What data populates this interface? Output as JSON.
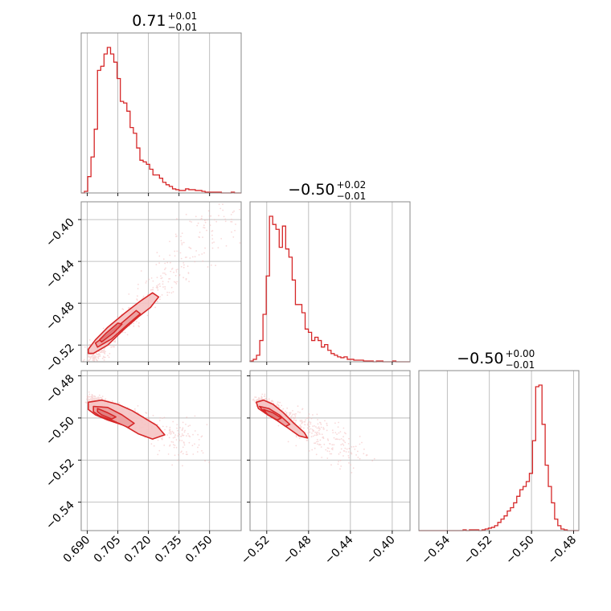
{
  "chart_data": {
    "type": "corner",
    "color": "#d62728",
    "grid": true,
    "parameters": [
      {
        "title": {
          "value": "0.71",
          "upper": "+0.01",
          "lower": "−0.01"
        },
        "range": [
          0.687,
          0.7655
        ],
        "ticks": [
          0.69,
          0.705,
          0.72,
          0.735,
          0.75
        ],
        "tick_labels": [
          "0.690",
          "0.705",
          "0.720",
          "0.735",
          "0.750"
        ]
      },
      {
        "title": {
          "value": "−0.50",
          "upper": "+0.02",
          "lower": "−0.01"
        },
        "range": [
          -0.536,
          -0.383
        ],
        "ticks": [
          -0.52,
          -0.48,
          -0.44,
          -0.4
        ],
        "tick_labels": [
          "−0.52",
          "−0.48",
          "−0.44",
          "−0.40"
        ]
      },
      {
        "title": {
          "value": "−0.50",
          "upper": "+0.00",
          "lower": "−0.01"
        },
        "range": [
          -0.5535,
          -0.4775
        ],
        "ticks": [
          -0.54,
          -0.52,
          -0.5,
          -0.48
        ],
        "tick_labels": [
          "−0.54",
          "−0.52",
          "−0.50",
          "−0.48"
        ]
      }
    ],
    "histograms": [
      {
        "param": 0,
        "bins": [
          0.687,
          0.6886,
          0.6902,
          0.6918,
          0.6934,
          0.695,
          0.6966,
          0.6982,
          0.6998,
          0.7014,
          0.703,
          0.7046,
          0.7062,
          0.7078,
          0.7094,
          0.711,
          0.7126,
          0.7142,
          0.7158,
          0.7174,
          0.719,
          0.7206,
          0.7222,
          0.7238,
          0.7254,
          0.727,
          0.7286,
          0.7302,
          0.7318,
          0.7334,
          0.735,
          0.7366,
          0.7382,
          0.7398,
          0.7414,
          0.743,
          0.7446,
          0.7462,
          0.7478,
          0.7494,
          0.751,
          0.7526,
          0.7542,
          0.7558,
          0.7574,
          0.759,
          0.7606,
          0.7622,
          0.7638,
          0.7655
        ],
        "counts": [
          0,
          2,
          20,
          44,
          78,
          150,
          155,
          170,
          178,
          170,
          160,
          140,
          112,
          110,
          100,
          80,
          73,
          55,
          40,
          38,
          35,
          29,
          22,
          22,
          18,
          13,
          10,
          8,
          5,
          4,
          3,
          3,
          5,
          4,
          4,
          3,
          3,
          2,
          1,
          1,
          1,
          1,
          1,
          0,
          0,
          0,
          1,
          0,
          0
        ]
      },
      {
        "param": 1,
        "bins": [
          -0.536,
          -0.5329,
          -0.5298,
          -0.5267,
          -0.5236,
          -0.5205,
          -0.5174,
          -0.5143,
          -0.5112,
          -0.5081,
          -0.505,
          -0.5019,
          -0.4988,
          -0.4957,
          -0.4926,
          -0.4895,
          -0.4864,
          -0.4833,
          -0.4802,
          -0.4771,
          -0.474,
          -0.4709,
          -0.4678,
          -0.4647,
          -0.4616,
          -0.4585,
          -0.4554,
          -0.4523,
          -0.4492,
          -0.4461,
          -0.443,
          -0.4399,
          -0.4368,
          -0.4337,
          -0.4306,
          -0.4275,
          -0.4244,
          -0.4213,
          -0.4182,
          -0.4151,
          -0.412,
          -0.4089,
          -0.4058,
          -0.4027,
          -0.3996,
          -0.3965,
          -0.3934,
          -0.3903,
          -0.3872,
          -0.383
        ],
        "counts": [
          1,
          3,
          8,
          26,
          58,
          105,
          178,
          168,
          162,
          140,
          166,
          138,
          128,
          100,
          70,
          70,
          60,
          40,
          36,
          26,
          30,
          26,
          18,
          21,
          14,
          10,
          8,
          6,
          5,
          6,
          3,
          3,
          2,
          2,
          2,
          1,
          1,
          1,
          0,
          1,
          1,
          0,
          0,
          0,
          1,
          0,
          0,
          0,
          0
        ]
      },
      {
        "param": 2,
        "bins": [
          -0.5535,
          -0.552,
          -0.5505,
          -0.549,
          -0.5475,
          -0.546,
          -0.5445,
          -0.543,
          -0.5415,
          -0.54,
          -0.5385,
          -0.537,
          -0.5355,
          -0.534,
          -0.5325,
          -0.531,
          -0.5295,
          -0.528,
          -0.5265,
          -0.525,
          -0.5235,
          -0.522,
          -0.5205,
          -0.519,
          -0.5175,
          -0.516,
          -0.5145,
          -0.513,
          -0.5115,
          -0.51,
          -0.5085,
          -0.507,
          -0.5055,
          -0.504,
          -0.5025,
          -0.501,
          -0.4995,
          -0.498,
          -0.4965,
          -0.495,
          -0.4935,
          -0.492,
          -0.4905,
          -0.489,
          -0.4875,
          -0.486,
          -0.4845,
          -0.483,
          -0.4815,
          -0.4775
        ],
        "counts": [
          0,
          0,
          0,
          0,
          0,
          0,
          0,
          0,
          0,
          0,
          0,
          0,
          0,
          0,
          1,
          0,
          1,
          1,
          1,
          0,
          1,
          2,
          3,
          4,
          6,
          10,
          14,
          18,
          24,
          28,
          34,
          42,
          50,
          54,
          60,
          70,
          110,
          176,
          178,
          130,
          80,
          54,
          34,
          14,
          6,
          2,
          1,
          0,
          0
        ]
      }
    ],
    "scatter_clouds": [
      {
        "x_param": 0,
        "y_param": 1,
        "center": [
          0.705,
          -0.505
        ],
        "direction": [
          0.024,
          0.05
        ],
        "spread": 0.0022,
        "t_range": [
          -0.55,
          2.4
        ]
      },
      {
        "x_param": 0,
        "y_param": 2,
        "center": [
          0.705,
          -0.497
        ],
        "direction": [
          0.018,
          -0.008
        ],
        "spread": 0.0016,
        "t_range": [
          -0.75,
          2.2
        ]
      },
      {
        "x_param": 1,
        "y_param": 2,
        "center": [
          -0.509,
          -0.497
        ],
        "direction": [
          0.036,
          -0.01
        ],
        "spread": 0.0016,
        "t_range": [
          -0.5,
          2.2
        ]
      }
    ],
    "contours": [
      {
        "x_param": 0,
        "y_param": 1,
        "levels": [
          [
            [
              0.6905,
              -0.528
            ],
            [
              0.693,
              -0.528
            ],
            [
              0.7,
              -0.52
            ],
            [
              0.708,
              -0.505
            ],
            [
              0.715,
              -0.493
            ],
            [
              0.721,
              -0.484
            ],
            [
              0.725,
              -0.474
            ],
            [
              0.722,
              -0.47
            ],
            [
              0.716,
              -0.478
            ],
            [
              0.708,
              -0.49
            ],
            [
              0.7,
              -0.503
            ],
            [
              0.694,
              -0.515
            ],
            [
              0.6905,
              -0.524
            ]
          ],
          [
            [
              0.695,
              -0.522
            ],
            [
              0.702,
              -0.514
            ],
            [
              0.71,
              -0.5
            ],
            [
              0.716,
              -0.49
            ],
            [
              0.714,
              -0.487
            ],
            [
              0.708,
              -0.497
            ],
            [
              0.7,
              -0.51
            ],
            [
              0.694,
              -0.518
            ]
          ],
          [
            [
              0.697,
              -0.517
            ],
            [
              0.703,
              -0.508
            ],
            [
              0.707,
              -0.5
            ],
            [
              0.705,
              -0.499
            ],
            [
              0.699,
              -0.509
            ],
            [
              0.696,
              -0.515
            ]
          ]
        ]
      },
      {
        "x_param": 0,
        "y_param": 2,
        "levels": [
          [
            [
              0.6905,
              -0.4925
            ],
            [
              0.697,
              -0.4915
            ],
            [
              0.705,
              -0.4935
            ],
            [
              0.712,
              -0.4965
            ],
            [
              0.718,
              -0.5
            ],
            [
              0.724,
              -0.5035
            ],
            [
              0.728,
              -0.508
            ],
            [
              0.722,
              -0.51
            ],
            [
              0.715,
              -0.5075
            ],
            [
              0.708,
              -0.5035
            ],
            [
              0.7,
              -0.501
            ],
            [
              0.694,
              -0.4985
            ],
            [
              0.6905,
              -0.496
            ]
          ],
          [
            [
              0.693,
              -0.4945
            ],
            [
              0.7,
              -0.495
            ],
            [
              0.707,
              -0.4985
            ],
            [
              0.713,
              -0.5025
            ],
            [
              0.71,
              -0.5045
            ],
            [
              0.703,
              -0.5015
            ],
            [
              0.696,
              -0.499
            ],
            [
              0.693,
              -0.497
            ]
          ],
          [
            [
              0.695,
              -0.4955
            ],
            [
              0.7,
              -0.4975
            ],
            [
              0.704,
              -0.4995
            ],
            [
              0.702,
              -0.5005
            ],
            [
              0.697,
              -0.4985
            ],
            [
              0.695,
              -0.497
            ]
          ]
        ]
      },
      {
        "x_param": 1,
        "y_param": 2,
        "levels": [
          [
            [
              -0.53,
              -0.4925
            ],
            [
              -0.523,
              -0.4915
            ],
            [
              -0.514,
              -0.4935
            ],
            [
              -0.504,
              -0.4975
            ],
            [
              -0.494,
              -0.5025
            ],
            [
              -0.484,
              -0.507
            ],
            [
              -0.481,
              -0.5095
            ],
            [
              -0.489,
              -0.5085
            ],
            [
              -0.499,
              -0.505
            ],
            [
              -0.509,
              -0.5015
            ],
            [
              -0.519,
              -0.4985
            ],
            [
              -0.528,
              -0.4955
            ]
          ],
          [
            [
              -0.527,
              -0.4945
            ],
            [
              -0.518,
              -0.4955
            ],
            [
              -0.508,
              -0.4985
            ],
            [
              -0.498,
              -0.503
            ],
            [
              -0.502,
              -0.504
            ],
            [
              -0.512,
              -0.5005
            ],
            [
              -0.522,
              -0.4975
            ]
          ],
          [
            [
              -0.523,
              -0.496
            ],
            [
              -0.514,
              -0.4975
            ],
            [
              -0.506,
              -0.5
            ],
            [
              -0.51,
              -0.501
            ],
            [
              -0.519,
              -0.4985
            ]
          ]
        ]
      }
    ]
  }
}
